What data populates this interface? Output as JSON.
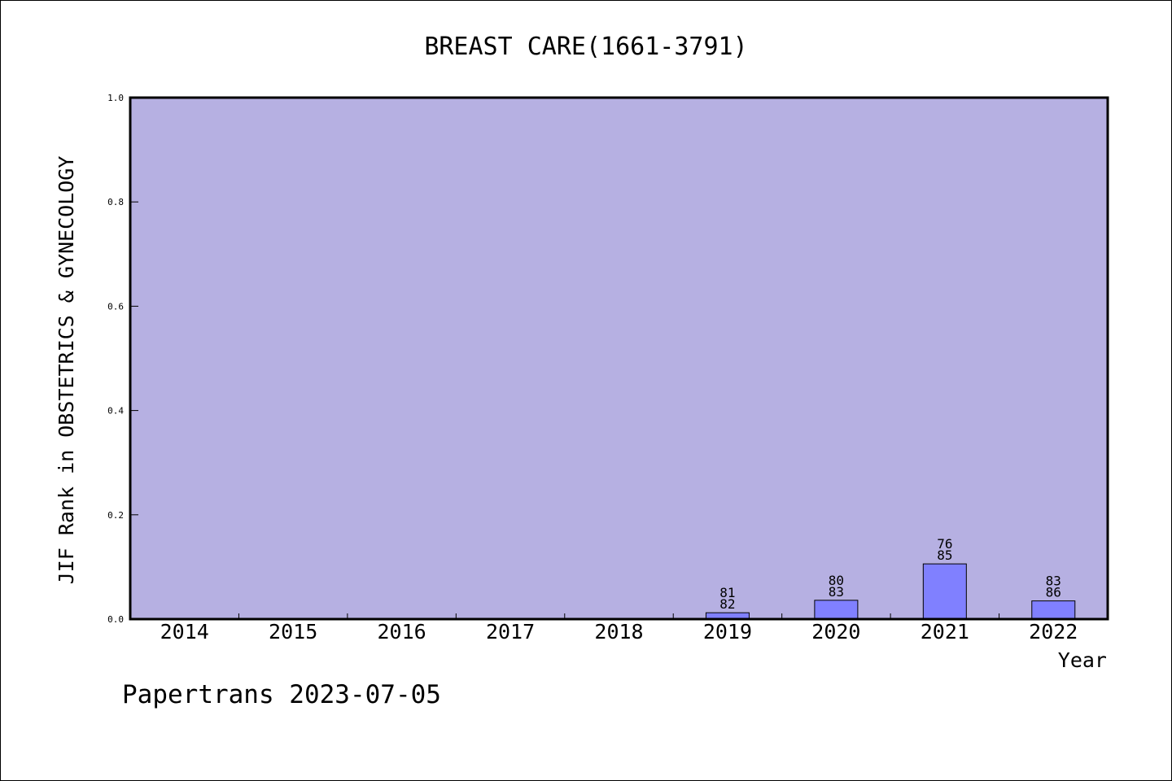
{
  "chart_data": {
    "type": "bar",
    "title": "BREAST CARE(1661-3791)",
    "xlabel": "Year",
    "ylabel": "JIF Rank in OBSTETRICS & GYNECOLOGY",
    "categories": [
      "2014",
      "2015",
      "2016",
      "2017",
      "2018",
      "2019",
      "2020",
      "2021",
      "2022"
    ],
    "values": [
      0,
      0,
      0,
      0,
      0,
      0.0122,
      0.0361,
      0.1059,
      0.0349
    ],
    "rank": [
      null,
      null,
      null,
      null,
      null,
      "81",
      "80",
      "76",
      "83"
    ],
    "total": [
      null,
      null,
      null,
      null,
      null,
      "82",
      "83",
      "85",
      "86"
    ],
    "ylim": [
      0,
      1.0
    ],
    "yticks": [
      "0.0",
      "0.2",
      "0.4",
      "0.6",
      "0.8",
      "1.0"
    ],
    "grid": false,
    "plot_background": "#b6b0e2",
    "bar_color": "#8080ff"
  },
  "footer": "Papertrans 2023-07-05"
}
